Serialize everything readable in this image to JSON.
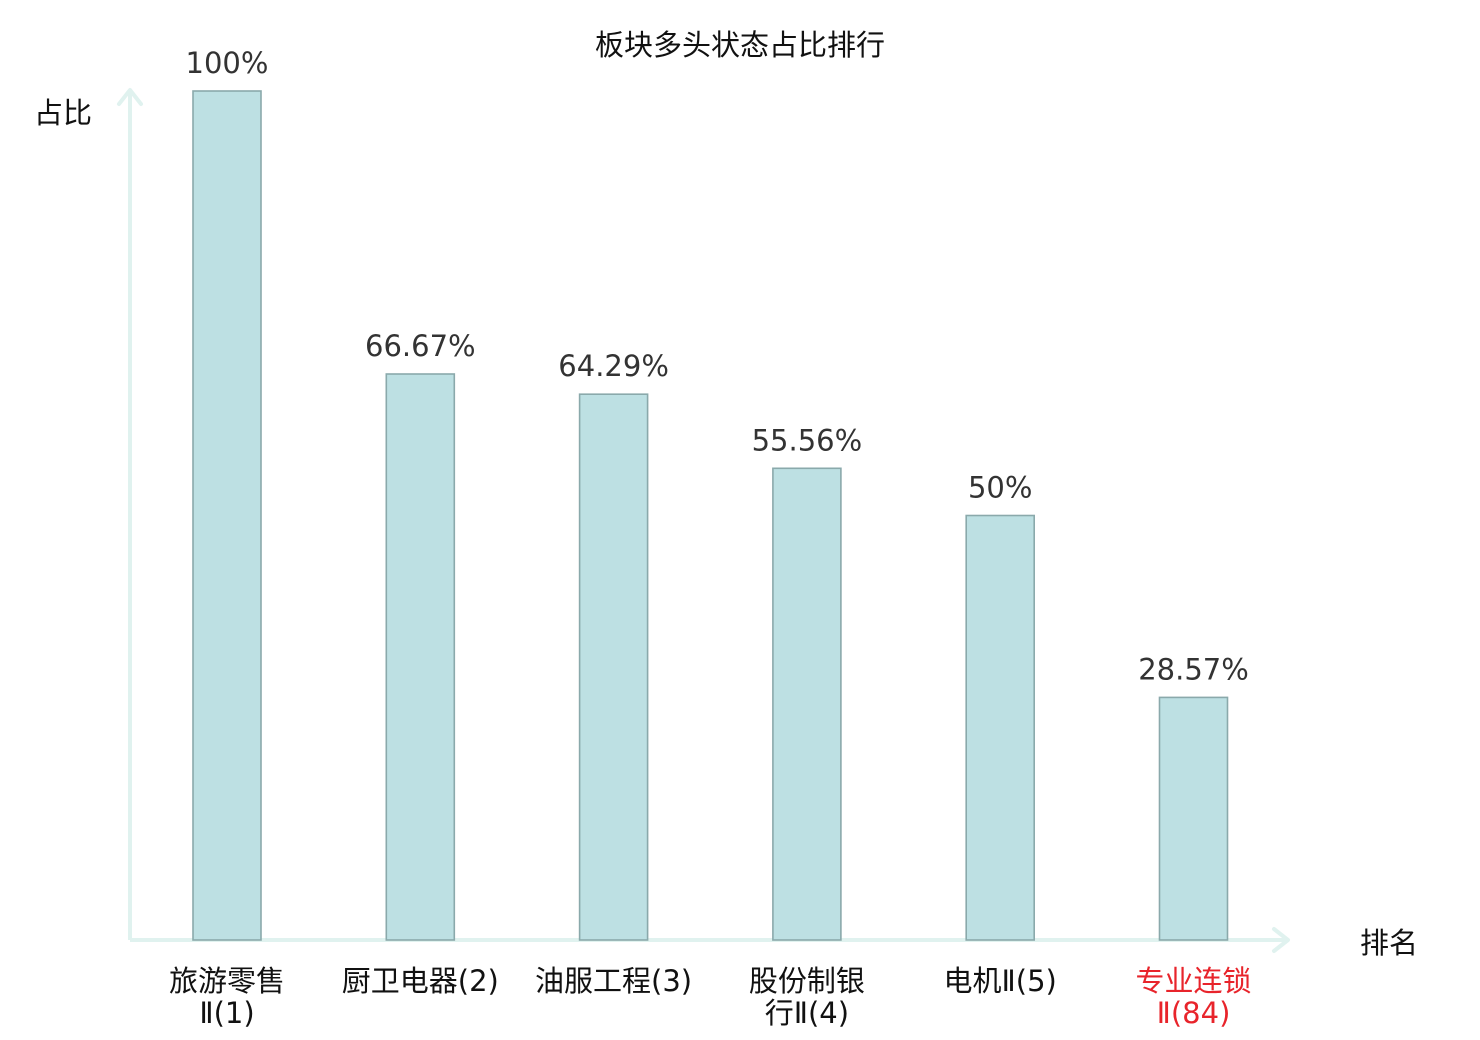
{
  "chart_data": {
    "type": "bar",
    "title": "板块多头状态占比排行",
    "ylabel": "占比",
    "xlabel": "排名",
    "ylim": [
      0,
      100
    ],
    "grid": false,
    "categories": [
      {
        "line1": "旅游零售",
        "line2": "Ⅱ(1)",
        "highlight": false
      },
      {
        "line1": "厨卫电器(2)",
        "line2": "",
        "highlight": false
      },
      {
        "line1": "油服工程(3)",
        "line2": "",
        "highlight": false
      },
      {
        "line1": "股份制银",
        "line2": "行Ⅱ(4)",
        "highlight": false
      },
      {
        "line1": "电机Ⅱ(5)",
        "line2": "",
        "highlight": false
      },
      {
        "line1": "专业连锁",
        "line2": "Ⅱ(84)",
        "highlight": true
      }
    ],
    "values": [
      100,
      66.67,
      64.29,
      55.56,
      50,
      28.57
    ],
    "value_labels": [
      "100%",
      "66.67%",
      "64.29%",
      "55.56%",
      "50%",
      "28.57%"
    ],
    "colors": {
      "bar_fill": "#bde0e3",
      "bar_stroke": "#8aa9ab",
      "axis": "#e0f2ef",
      "highlight_text": "#e8242b"
    }
  }
}
